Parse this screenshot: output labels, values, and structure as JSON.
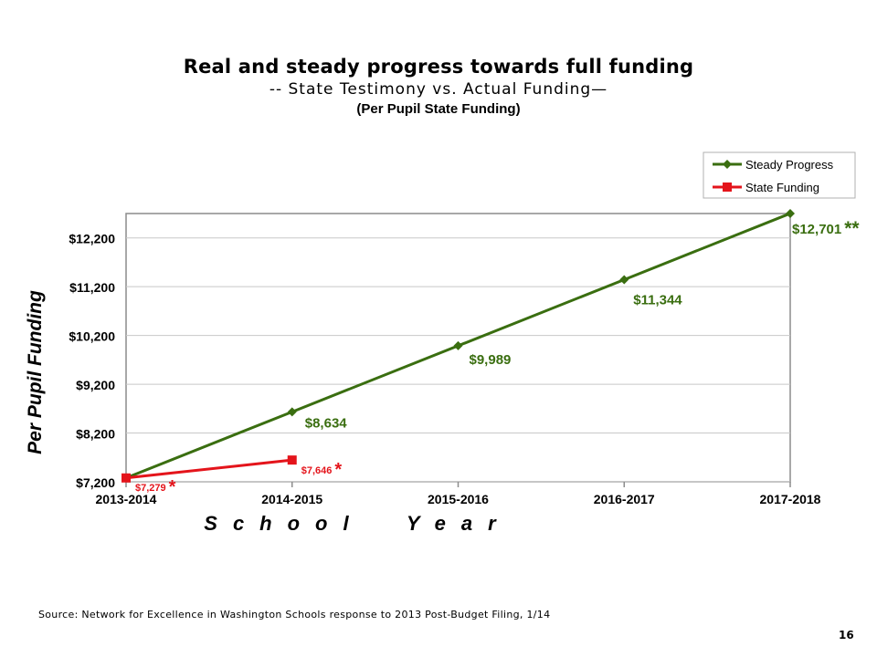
{
  "slide": {
    "title": "Real and steady progress towards full funding",
    "subtitle": "-- State Testimony vs. Actual Funding—",
    "subtitle2": "(Per Pupil State Funding)",
    "source": "Source: Network for Excellence in Washington Schools response to 2013 Post-Budget Filing, 1/14",
    "page_number": "16"
  },
  "chart_data": {
    "type": "line",
    "title": "",
    "xlabel": "School Year",
    "ylabel": "Per Pupil Funding",
    "categories": [
      "2013-2014",
      "2014-2015",
      "2015-2016",
      "2016-2017",
      "2017-2018"
    ],
    "y_ticks": [
      7200,
      8200,
      9200,
      10200,
      11200,
      12200
    ],
    "y_tick_labels": [
      "$7,200",
      "$8,200",
      "$9,200",
      "$10,200",
      "$11,200",
      "$12,200"
    ],
    "ylim": [
      7200,
      12700
    ],
    "grid": true,
    "legend": "top-right",
    "series": [
      {
        "name": "Steady Progress",
        "color": "#3a6e10",
        "marker": "diamond",
        "values": [
          7279,
          8634,
          9989,
          11344,
          12701
        ],
        "labels": [
          "",
          "$8,634",
          "$9,989",
          "$11,344",
          "$12,701"
        ],
        "label_suffix": [
          "",
          "",
          "",
          "",
          "**"
        ]
      },
      {
        "name": "State Funding",
        "color": "#e4141b",
        "marker": "square",
        "values": [
          7279,
          7646,
          null,
          null,
          null
        ],
        "labels": [
          "$7,279",
          "$7,646",
          "",
          "",
          ""
        ],
        "label_suffix": [
          "*",
          "*",
          "",
          "",
          ""
        ]
      }
    ]
  }
}
